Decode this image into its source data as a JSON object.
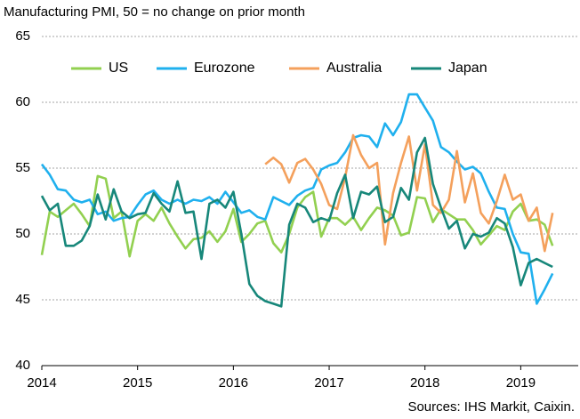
{
  "chart_data": {
    "type": "line",
    "title": "Manufacturing PMI, 50 = no change on prior month",
    "source": "Sources: IHS Markit, Caixin.",
    "x": [
      2014,
      2014.083,
      2014.167,
      2014.25,
      2014.333,
      2014.417,
      2014.5,
      2014.583,
      2014.667,
      2014.75,
      2014.833,
      2014.917,
      2015,
      2015.083,
      2015.167,
      2015.25,
      2015.333,
      2015.417,
      2015.5,
      2015.583,
      2015.667,
      2015.75,
      2015.833,
      2015.917,
      2016,
      2016.083,
      2016.167,
      2016.25,
      2016.333,
      2016.417,
      2016.5,
      2016.583,
      2016.667,
      2016.75,
      2016.833,
      2016.917,
      2017,
      2017.083,
      2017.167,
      2017.25,
      2017.333,
      2017.417,
      2017.5,
      2017.583,
      2017.667,
      2017.75,
      2017.833,
      2017.917,
      2018,
      2018.083,
      2018.167,
      2018.25,
      2018.333,
      2018.417,
      2018.5,
      2018.583,
      2018.667,
      2018.75,
      2018.833,
      2018.917,
      2019,
      2019.083,
      2019.167,
      2019.25,
      2019.333
    ],
    "series": [
      {
        "name": "US",
        "color": "#92d050",
        "values": [
          48.4,
          51.7,
          51.3,
          51.8,
          52.3,
          51.5,
          50.6,
          54.4,
          54.2,
          51.2,
          51.7,
          48.3,
          51.0,
          51.5,
          51.0,
          52.0,
          50.8,
          49.8,
          48.9,
          49.6,
          49.7,
          50.2,
          49.4,
          50.2,
          51.9,
          49.4,
          50.0,
          50.8,
          51.0,
          49.3,
          48.6,
          50.0,
          52.0,
          52.8,
          53.2,
          49.8,
          51.2,
          51.2,
          50.7,
          51.3,
          50.3,
          51.2,
          52.0,
          51.8,
          51.4,
          49.9,
          50.1,
          52.8,
          52.7,
          50.9,
          51.9,
          51.5,
          51.1,
          51.1,
          50.3,
          49.2,
          49.9,
          50.6,
          50.3,
          51.7,
          52.3,
          51.0,
          51.1,
          50.7,
          49.1
        ]
      },
      {
        "name": "Eurozone",
        "color": "#1fb0ee",
        "values": [
          55.3,
          54.5,
          53.4,
          53.3,
          52.6,
          52.4,
          52.6,
          51.5,
          51.7,
          51.0,
          51.2,
          51.3,
          52.2,
          53.0,
          53.3,
          52.6,
          52.3,
          52.6,
          52.3,
          52.6,
          52.5,
          52.8,
          52.3,
          53.2,
          52.4,
          51.6,
          51.8,
          51.3,
          51.1,
          52.8,
          52.5,
          52.2,
          52.9,
          53.3,
          53.5,
          54.9,
          55.2,
          55.4,
          56.2,
          57.3,
          57.5,
          57.4,
          56.6,
          58.4,
          57.5,
          58.5,
          60.6,
          60.6,
          59.6,
          58.6,
          56.6,
          56.2,
          55.5,
          54.9,
          55.1,
          54.6,
          53.2,
          52.0,
          51.9,
          50.0,
          48.6,
          48.5,
          44.7,
          45.8,
          47.0
        ]
      },
      {
        "name": "Australia",
        "color": "#f4a05c",
        "values": [
          null,
          null,
          null,
          null,
          null,
          null,
          null,
          null,
          null,
          null,
          null,
          null,
          null,
          null,
          null,
          null,
          null,
          null,
          null,
          null,
          null,
          null,
          null,
          null,
          null,
          null,
          null,
          null,
          55.3,
          55.8,
          55.3,
          53.9,
          55.4,
          55.7,
          54.9,
          53.8,
          52.2,
          51.9,
          54.3,
          57.5,
          56.0,
          55.0,
          55.4,
          49.2,
          53.1,
          55.4,
          57.4,
          53.3,
          56.8,
          52.2,
          51.6,
          52.6,
          56.3,
          52.4,
          54.6,
          51.6,
          50.8,
          52.5,
          54.5,
          52.6,
          53.0,
          51.0,
          52.0,
          48.7,
          51.6
        ]
      },
      {
        "name": "Japan",
        "color": "#17877a",
        "values": [
          52.9,
          51.8,
          52.3,
          49.1,
          49.1,
          49.5,
          50.6,
          53.0,
          51.1,
          53.4,
          51.7,
          51.2,
          51.5,
          51.6,
          53.1,
          52.3,
          51.7,
          54.0,
          51.6,
          51.7,
          48.1,
          52.3,
          52.6,
          52.0,
          53.2,
          50.0,
          46.2,
          45.3,
          44.9,
          44.7,
          44.5,
          50.7,
          52.3,
          52.0,
          50.9,
          51.2,
          51.0,
          53.1,
          54.5,
          51.2,
          53.2,
          53.0,
          53.6,
          50.9,
          51.3,
          53.5,
          52.6,
          56.2,
          57.3,
          53.8,
          52.0,
          50.4,
          51.0,
          48.9,
          50.0,
          49.8,
          50.1,
          51.2,
          50.8,
          49.0,
          46.1,
          47.8,
          48.1,
          47.8,
          47.5
        ]
      }
    ],
    "xlim": [
      2014,
      2019.6
    ],
    "xticks": [
      2014,
      2015,
      2016,
      2017,
      2018,
      2019
    ],
    "ylim": [
      40,
      65
    ],
    "yticks": [
      40,
      45,
      50,
      55,
      60,
      65
    ],
    "grid": true,
    "legend": "top"
  }
}
